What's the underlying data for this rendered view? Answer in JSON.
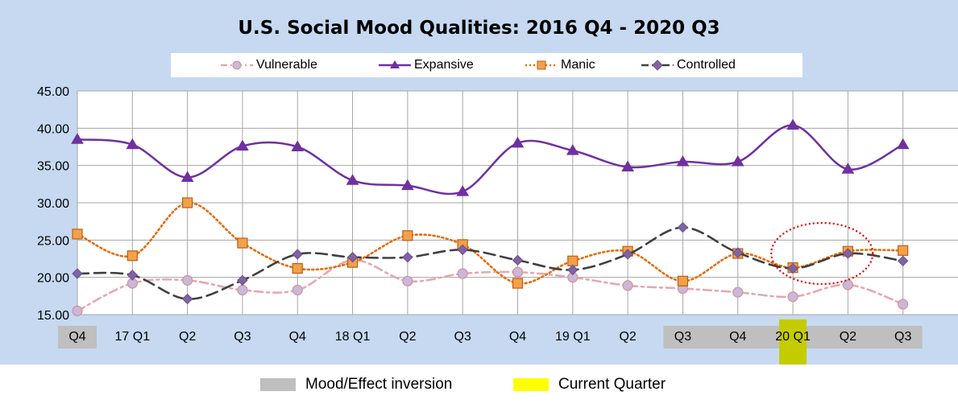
{
  "chart_data": {
    "type": "line",
    "title": "U.S. Social Mood Qualities:  2016 Q4 - 2020 Q3",
    "categories": [
      "Q4",
      "17 Q1",
      "Q2",
      "Q3",
      "Q4",
      "18 Q1",
      "Q2",
      "Q3",
      "Q4",
      "19 Q1",
      "Q2",
      "Q3",
      "Q4",
      "20 Q1",
      "Q2",
      "Q3"
    ],
    "ylim": [
      15,
      45
    ],
    "yticks": [
      "45.00",
      "40.00",
      "35.00",
      "30.00",
      "25.00",
      "20.00",
      "15.00"
    ],
    "grid": true,
    "legend_position": "top",
    "series": [
      {
        "name": "Vulnerable",
        "color": "#e6a8ad",
        "marker": "circle",
        "marker_fill": "#c9b8da",
        "marker_stroke": "#d98e95",
        "dash": "dashdot",
        "values": [
          15.5,
          19.2,
          19.6,
          18.3,
          18.3,
          22.3,
          19.5,
          20.5,
          20.7,
          20.0,
          18.9,
          18.5,
          18.0,
          17.4,
          19.0,
          16.4
        ]
      },
      {
        "name": "Expansive",
        "color": "#7030a0",
        "marker": "triangle",
        "marker_fill": "#7030a0",
        "marker_stroke": "#7030a0",
        "dash": "solid",
        "values": [
          38.5,
          37.8,
          33.4,
          37.6,
          37.5,
          33.0,
          32.3,
          31.5,
          38.0,
          37.0,
          34.8,
          35.5,
          35.5,
          40.4,
          34.5,
          37.8
        ]
      },
      {
        "name": "Manic",
        "color": "#e36c0a",
        "marker": "square",
        "marker_fill": "#f0a24a",
        "marker_stroke": "#c55a11",
        "dash": "dot",
        "values": [
          25.8,
          22.9,
          30.0,
          24.6,
          21.2,
          22.0,
          25.6,
          24.4,
          19.2,
          22.2,
          23.5,
          19.5,
          23.2,
          21.3,
          23.5,
          23.6
        ]
      },
      {
        "name": "Controlled",
        "color": "#404040",
        "marker": "diamond",
        "marker_fill": "#8064a2",
        "marker_stroke": "#6a4f8f",
        "dash": "longdash",
        "values": [
          20.5,
          20.3,
          17.1,
          19.6,
          23.1,
          22.7,
          22.7,
          23.7,
          22.3,
          21.0,
          23.1,
          26.7,
          23.3,
          21.2,
          23.2,
          22.2
        ]
      }
    ],
    "highlights": {
      "inversion": [
        0,
        11,
        12,
        13,
        14,
        15
      ],
      "current": 13
    }
  },
  "footer": {
    "inversion_label": "Mood/Effect inversion",
    "current_label": "Current Quarter",
    "inversion_color": "#bfbfbf",
    "current_color": "#ffff00"
  },
  "colors": {
    "background": "#c6d9f1",
    "plot": "#ffffff",
    "grid": "#a6a6a6",
    "current_bar": "#c4cc00",
    "circle_annotation": "#e00000"
  }
}
